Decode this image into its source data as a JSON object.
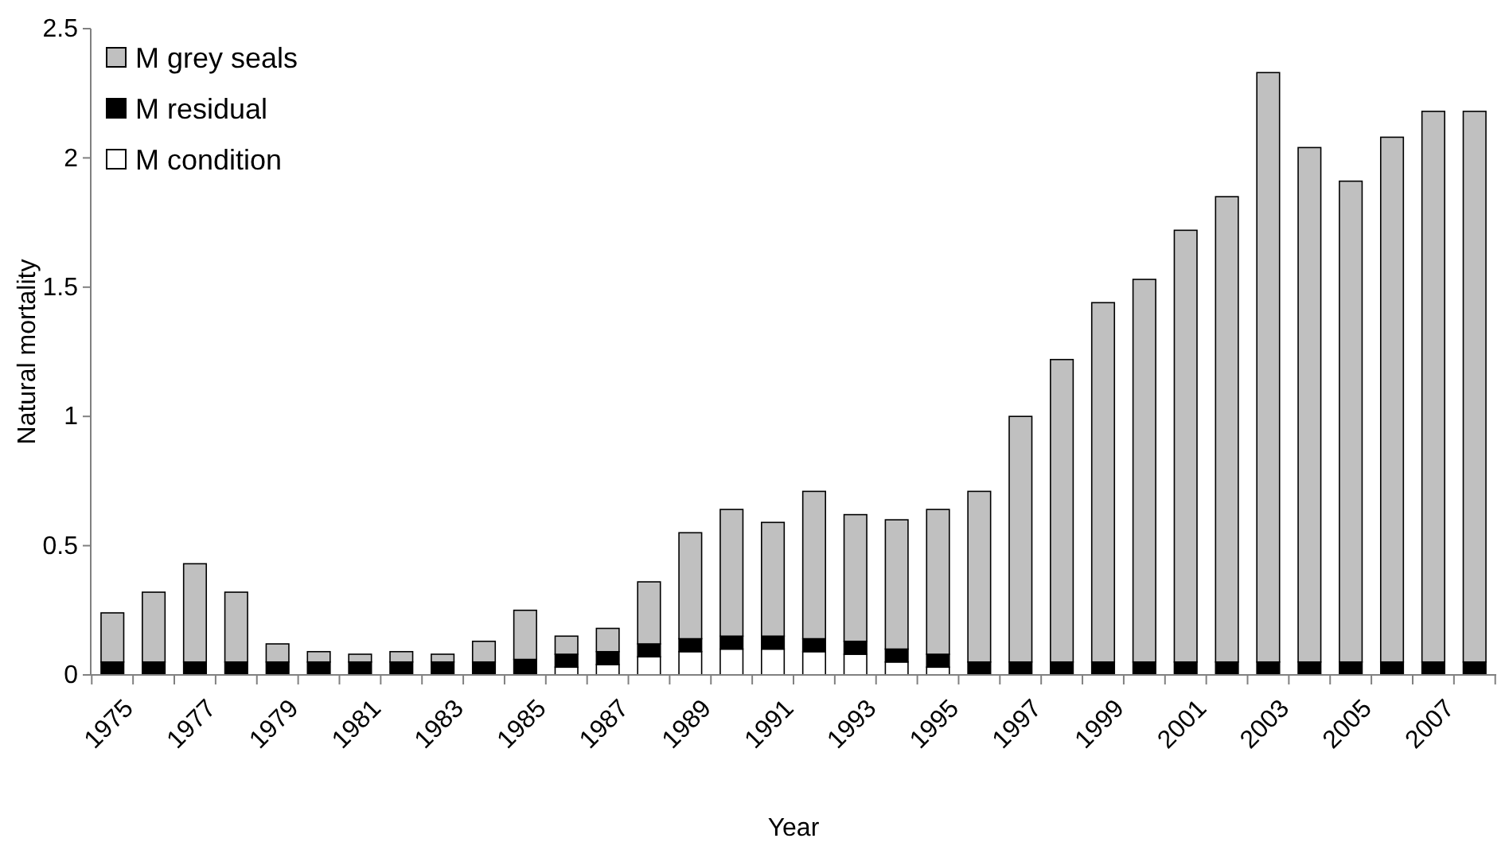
{
  "chart_data": {
    "type": "bar",
    "stacked": true,
    "xlabel": "Year",
    "ylabel": "Natural mortality",
    "categories": [
      "1975",
      null,
      "1977",
      null,
      "1979",
      null,
      "1981",
      null,
      "1983",
      null,
      "1985",
      null,
      "1987",
      null,
      "1989",
      null,
      "1991",
      null,
      "1993",
      null,
      "1995",
      null,
      "1997",
      null,
      "1999",
      null,
      "2001",
      null,
      "2003",
      null,
      "2005",
      null,
      "2007",
      null
    ],
    "series": [
      {
        "name": "M condition",
        "color": "#ffffff",
        "values": [
          0,
          0,
          0,
          0,
          0,
          0,
          0,
          0,
          0,
          0,
          0,
          0.03,
          0.04,
          0.07,
          0.09,
          0.1,
          0.1,
          0.09,
          0.08,
          0.05,
          0.03,
          0,
          0,
          0,
          0,
          0,
          0,
          0,
          0,
          0,
          0,
          0,
          0,
          0
        ]
      },
      {
        "name": "M residual",
        "color": "#000000",
        "values": [
          0.05,
          0.05,
          0.05,
          0.05,
          0.05,
          0.05,
          0.05,
          0.05,
          0.05,
          0.05,
          0.06,
          0.05,
          0.05,
          0.05,
          0.05,
          0.05,
          0.05,
          0.05,
          0.05,
          0.05,
          0.05,
          0.05,
          0.05,
          0.05,
          0.05,
          0.05,
          0.05,
          0.05,
          0.05,
          0.05,
          0.05,
          0.05,
          0.05,
          0.05
        ]
      },
      {
        "name": "M grey seals",
        "color": "#c0c0c0",
        "values": [
          0.19,
          0.27,
          0.38,
          0.27,
          0.07,
          0.04,
          0.03,
          0.04,
          0.03,
          0.08,
          0.19,
          0.07,
          0.09,
          0.24,
          0.41,
          0.49,
          0.44,
          0.57,
          0.49,
          0.5,
          0.56,
          0.66,
          0.95,
          1.17,
          1.39,
          1.48,
          1.67,
          1.8,
          2.28,
          1.99,
          1.86,
          2.03,
          2.13,
          2.13
        ]
      }
    ],
    "ylim": [
      0,
      2.5
    ],
    "yticks": [
      0,
      {
        "value": 0.5,
        "label": "0.5"
      },
      1,
      {
        "value": 1.5,
        "label": "1.5"
      },
      2,
      {
        "value": 2.5,
        "label": "2.5"
      }
    ],
    "legend": "top left"
  }
}
